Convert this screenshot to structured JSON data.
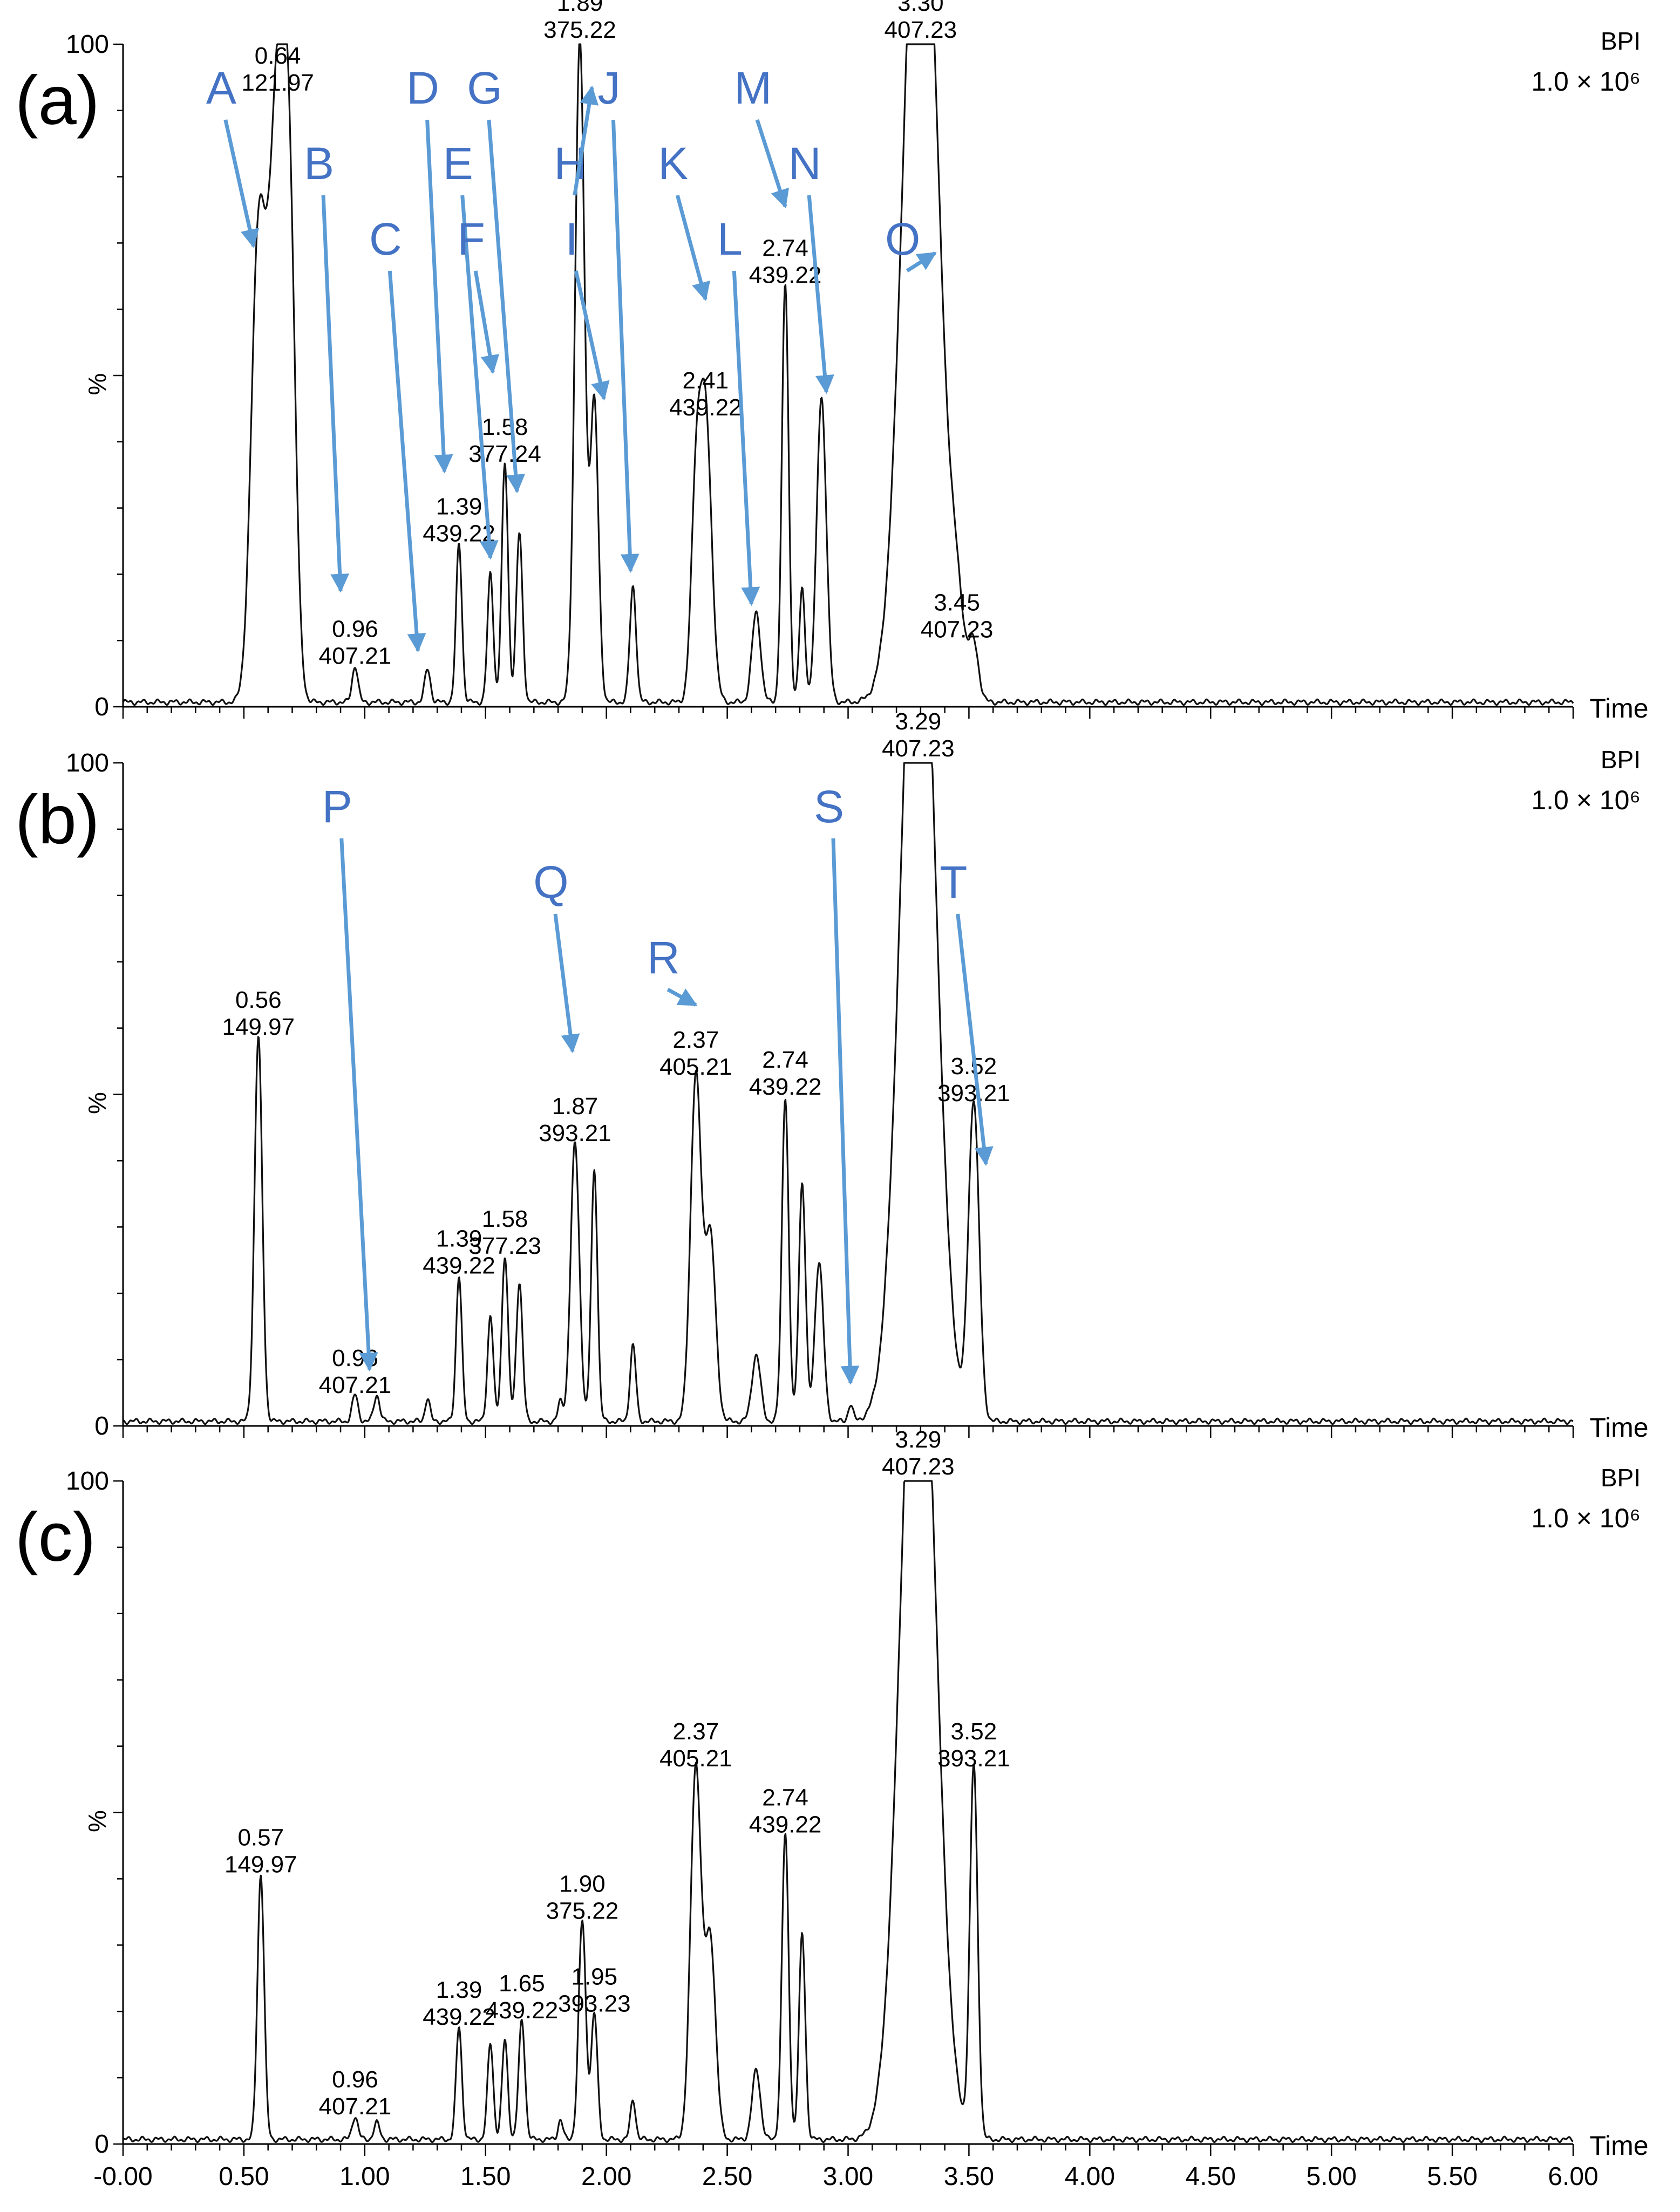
{
  "chart_data": [
    {
      "type": "line",
      "panel_label": "(a)",
      "corner_label": "BPI",
      "scale": "1.0 × 10⁶",
      "y_unit": "%",
      "x_label": "Time",
      "xlim": [
        0,
        6.0
      ],
      "ylim": [
        0,
        100
      ],
      "y_ticks": [
        "0",
        "100"
      ],
      "x_ticks": [],
      "peaks": [
        {
          "rt": 0.64,
          "y": 92,
          "w": 0.035
        },
        {
          "rt": 0.56,
          "y": 68,
          "w": 0.03
        },
        {
          "rt": 0.69,
          "y": 55,
          "w": 0.025
        },
        {
          "rt": 0.96,
          "y": 5.5,
          "w": 0.012
        },
        {
          "rt": 1.26,
          "y": 5,
          "w": 0.012
        },
        {
          "rt": 1.39,
          "y": 24,
          "w": 0.012
        },
        {
          "rt": 1.52,
          "y": 19.5,
          "w": 0.012
        },
        {
          "rt": 1.58,
          "y": 36,
          "w": 0.013
        },
        {
          "rt": 1.64,
          "y": 25.5,
          "w": 0.013
        },
        {
          "rt": 1.89,
          "y": 100,
          "w": 0.02
        },
        {
          "rt": 1.95,
          "y": 45,
          "w": 0.017
        },
        {
          "rt": 2.11,
          "y": 17.5,
          "w": 0.013
        },
        {
          "rt": 2.37,
          "y": 28,
          "w": 0.02
        },
        {
          "rt": 2.41,
          "y": 43,
          "w": 0.025
        },
        {
          "rt": 2.62,
          "y": 13.5,
          "w": 0.018
        },
        {
          "rt": 2.74,
          "y": 63,
          "w": 0.014
        },
        {
          "rt": 2.81,
          "y": 17,
          "w": 0.012
        },
        {
          "rt": 2.89,
          "y": 46,
          "w": 0.02
        },
        {
          "rt": 3.3,
          "y": 140,
          "w": 0.07
        },
        {
          "rt": 3.45,
          "y": 9.5,
          "w": 0.03
        },
        {
          "rt": 3.52,
          "y": 8,
          "w": 0.02
        }
      ],
      "peak_labels": [
        {
          "rt": "0.64",
          "mz": "121.97",
          "at": 0.64,
          "y": 92
        },
        {
          "rt": "0.96",
          "mz": "407.21",
          "at": 0.96,
          "y": 5.5
        },
        {
          "rt": "1.39",
          "mz": "439.22",
          "at": 1.39,
          "y": 24
        },
        {
          "rt": "1.58",
          "mz": "377.24",
          "at": 1.58,
          "y": 36
        },
        {
          "rt": "1.89",
          "mz": "375.22",
          "at": 1.89,
          "y": 100
        },
        {
          "rt": "2.41",
          "mz": "439.22",
          "at": 2.41,
          "y": 43
        },
        {
          "rt": "2.74",
          "mz": "439.22",
          "at": 2.74,
          "y": 63
        },
        {
          "rt": "3.30",
          "mz": "407.23",
          "at": 3.3,
          "y": 100
        },
        {
          "rt": "3.45",
          "mz": "407.23",
          "at": 3.45,
          "y": 9.5
        }
      ],
      "annotations": [
        {
          "letter": "A",
          "at": 0.54,
          "y": 69
        },
        {
          "letter": "B",
          "at": 0.9,
          "y": 17
        },
        {
          "letter": "C",
          "at": 1.22,
          "y": 8
        },
        {
          "letter": "D",
          "at": 1.33,
          "y": 35
        },
        {
          "letter": "E",
          "at": 1.52,
          "y": 22
        },
        {
          "letter": "F",
          "at": 1.53,
          "y": 50
        },
        {
          "letter": "G",
          "at": 1.63,
          "y": 32
        },
        {
          "letter": "H",
          "at": 1.94,
          "y": 93
        },
        {
          "letter": "I",
          "at": 1.99,
          "y": 46
        },
        {
          "letter": "J",
          "at": 2.1,
          "y": 20
        },
        {
          "letter": "K",
          "at": 2.41,
          "y": 61
        },
        {
          "letter": "L",
          "at": 2.6,
          "y": 15
        },
        {
          "letter": "M",
          "at": 2.74,
          "y": 75
        },
        {
          "letter": "N",
          "at": 2.91,
          "y": 47
        },
        {
          "letter": "O",
          "at": 3.36,
          "y": 68
        }
      ]
    },
    {
      "type": "line",
      "panel_label": "(b)",
      "corner_label": "BPI",
      "scale": "1.0 × 10⁶",
      "y_unit": "%",
      "x_label": "Time",
      "xlim": [
        0,
        6.0
      ],
      "ylim": [
        0,
        100
      ],
      "y_ticks": [
        "0",
        "100"
      ],
      "x_ticks": [],
      "peaks": [
        {
          "rt": 0.56,
          "y": 58,
          "w": 0.016
        },
        {
          "rt": 0.96,
          "y": 4,
          "w": 0.012
        },
        {
          "rt": 1.05,
          "y": 4,
          "w": 0.012
        },
        {
          "rt": 1.26,
          "y": 3.5,
          "w": 0.01
        },
        {
          "rt": 1.39,
          "y": 22,
          "w": 0.012
        },
        {
          "rt": 1.52,
          "y": 16,
          "w": 0.012
        },
        {
          "rt": 1.58,
          "y": 25,
          "w": 0.013
        },
        {
          "rt": 1.64,
          "y": 21,
          "w": 0.013
        },
        {
          "rt": 1.81,
          "y": 3,
          "w": 0.01
        },
        {
          "rt": 1.87,
          "y": 42,
          "w": 0.018
        },
        {
          "rt": 1.95,
          "y": 38,
          "w": 0.013
        },
        {
          "rt": 2.11,
          "y": 11.5,
          "w": 0.012
        },
        {
          "rt": 2.37,
          "y": 52,
          "w": 0.022
        },
        {
          "rt": 2.43,
          "y": 28,
          "w": 0.022
        },
        {
          "rt": 2.62,
          "y": 10,
          "w": 0.018
        },
        {
          "rt": 2.74,
          "y": 49,
          "w": 0.014
        },
        {
          "rt": 2.81,
          "y": 36,
          "w": 0.014
        },
        {
          "rt": 2.88,
          "y": 24,
          "w": 0.018
        },
        {
          "rt": 3.01,
          "y": 2.5,
          "w": 0.01
        },
        {
          "rt": 3.29,
          "y": 140,
          "w": 0.07
        },
        {
          "rt": 3.52,
          "y": 48,
          "w": 0.022
        }
      ],
      "peak_labels": [
        {
          "rt": "0.56",
          "mz": "149.97",
          "at": 0.56,
          "y": 58
        },
        {
          "rt": "0.96",
          "mz": "407.21",
          "at": 0.96,
          "y": 4
        },
        {
          "rt": "1.39",
          "mz": "439.22",
          "at": 1.39,
          "y": 22
        },
        {
          "rt": "1.58",
          "mz": "377.23",
          "at": 1.58,
          "y": 25
        },
        {
          "rt": "1.87",
          "mz": "393.21",
          "at": 1.87,
          "y": 42
        },
        {
          "rt": "2.37",
          "mz": "405.21",
          "at": 2.37,
          "y": 52
        },
        {
          "rt": "2.74",
          "mz": "439.22",
          "at": 2.74,
          "y": 49
        },
        {
          "rt": "3.29",
          "mz": "407.23",
          "at": 3.29,
          "y": 100
        },
        {
          "rt": "3.52",
          "mz": "393.21",
          "at": 3.52,
          "y": 48
        }
      ],
      "annotations": [
        {
          "letter": "P",
          "at": 1.02,
          "y": 8
        },
        {
          "letter": "Q",
          "at": 1.86,
          "y": 56
        },
        {
          "letter": "R",
          "at": 2.37,
          "y": 63
        },
        {
          "letter": "S",
          "at": 3.01,
          "y": 6
        },
        {
          "letter": "T",
          "at": 3.57,
          "y": 39
        }
      ]
    },
    {
      "type": "line",
      "panel_label": "(c)",
      "corner_label": "BPI",
      "scale": "1.0 × 10⁶",
      "y_unit": "%",
      "x_label": "Time",
      "xlim": [
        0,
        6.0
      ],
      "ylim": [
        0,
        100
      ],
      "y_ticks": [
        "0",
        "100"
      ],
      "x_ticks": [
        "-0.00",
        "0.50",
        "1.00",
        "1.50",
        "2.00",
        "2.50",
        "3.00",
        "3.50",
        "4.00",
        "4.50",
        "5.00",
        "5.50",
        "6.00"
      ],
      "peaks": [
        {
          "rt": 0.57,
          "y": 40,
          "w": 0.014
        },
        {
          "rt": 0.96,
          "y": 3.5,
          "w": 0.012
        },
        {
          "rt": 1.05,
          "y": 2.5,
          "w": 0.012
        },
        {
          "rt": 1.39,
          "y": 17,
          "w": 0.012
        },
        {
          "rt": 1.52,
          "y": 14.5,
          "w": 0.012
        },
        {
          "rt": 1.58,
          "y": 15,
          "w": 0.012
        },
        {
          "rt": 1.65,
          "y": 18,
          "w": 0.013
        },
        {
          "rt": 1.81,
          "y": 3,
          "w": 0.01
        },
        {
          "rt": 1.9,
          "y": 33,
          "w": 0.015
        },
        {
          "rt": 1.95,
          "y": 19,
          "w": 0.013
        },
        {
          "rt": 2.11,
          "y": 6,
          "w": 0.011
        },
        {
          "rt": 2.37,
          "y": 56,
          "w": 0.022
        },
        {
          "rt": 2.43,
          "y": 30,
          "w": 0.022
        },
        {
          "rt": 2.62,
          "y": 10.5,
          "w": 0.017
        },
        {
          "rt": 2.74,
          "y": 46,
          "w": 0.014
        },
        {
          "rt": 2.81,
          "y": 31,
          "w": 0.013
        },
        {
          "rt": 3.29,
          "y": 140,
          "w": 0.07
        },
        {
          "rt": 3.52,
          "y": 56,
          "w": 0.016
        }
      ],
      "peak_labels": [
        {
          "rt": "0.57",
          "mz": "149.97",
          "at": 0.57,
          "y": 40
        },
        {
          "rt": "0.96",
          "mz": "407.21",
          "at": 0.96,
          "y": 3.5
        },
        {
          "rt": "1.39",
          "mz": "439.22",
          "at": 1.39,
          "y": 17
        },
        {
          "rt": "1.65",
          "mz": "439.22",
          "at": 1.65,
          "y": 18
        },
        {
          "rt": "1.90",
          "mz": "375.22",
          "at": 1.9,
          "y": 33
        },
        {
          "rt": "1.95",
          "mz": "393.23",
          "at": 1.95,
          "y": 19
        },
        {
          "rt": "2.37",
          "mz": "405.21",
          "at": 2.37,
          "y": 56
        },
        {
          "rt": "2.74",
          "mz": "439.22",
          "at": 2.74,
          "y": 46
        },
        {
          "rt": "3.29",
          "mz": "407.23",
          "at": 3.29,
          "y": 100
        },
        {
          "rt": "3.52",
          "mz": "393.21",
          "at": 3.52,
          "y": 56
        }
      ],
      "annotations": []
    }
  ]
}
